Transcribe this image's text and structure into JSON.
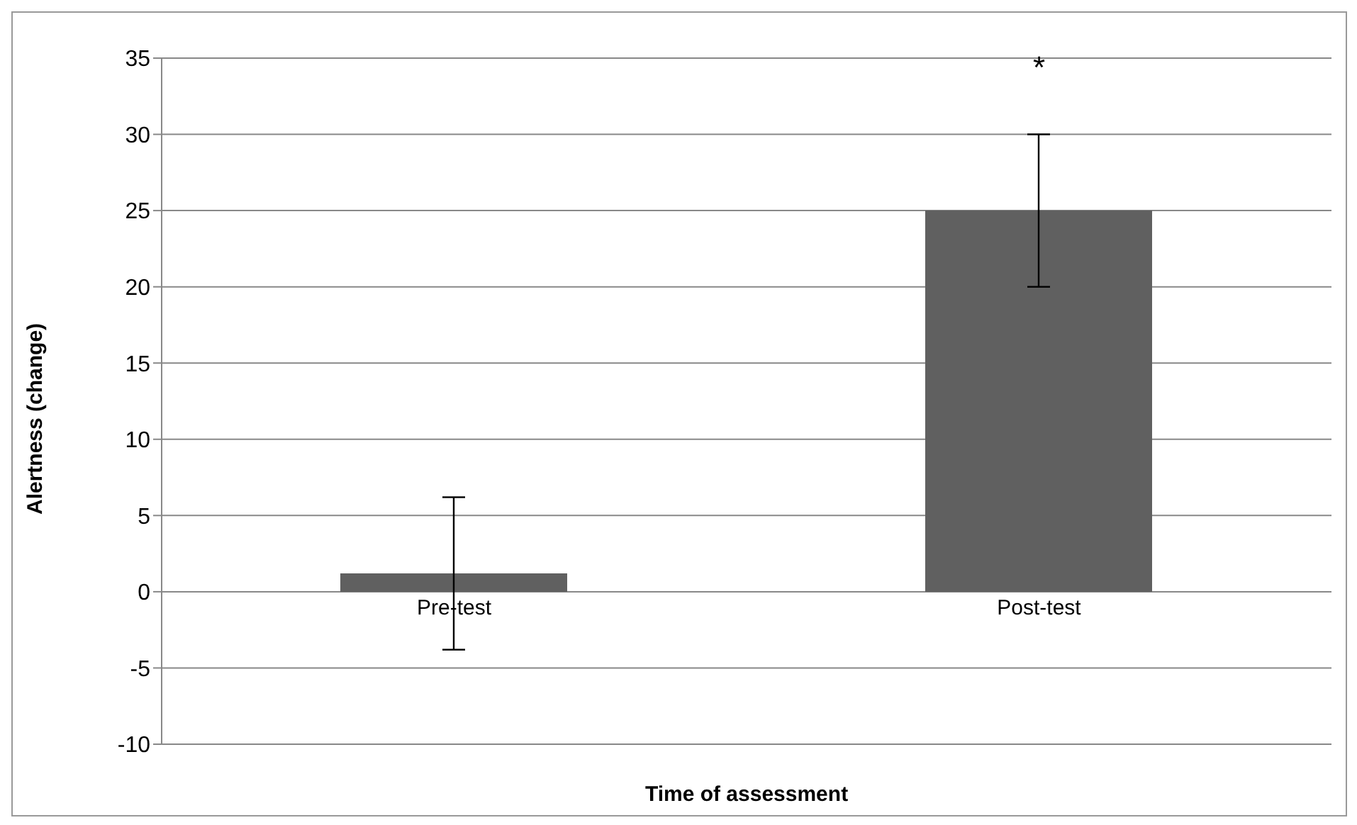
{
  "chart_data": {
    "type": "bar",
    "xlabel": "Time of assessment",
    "ylabel": "Alertness (change)",
    "categories": [
      "Pre-test",
      "Post-test"
    ],
    "values": [
      1.2,
      25
    ],
    "errors": [
      5,
      5
    ],
    "color": "#606060",
    "ylim": [
      -10,
      35
    ],
    "yticks": [
      -10,
      -5,
      0,
      5,
      10,
      15,
      20,
      25,
      30,
      35
    ],
    "grid": "y",
    "annotations": [
      "*"
    ]
  }
}
